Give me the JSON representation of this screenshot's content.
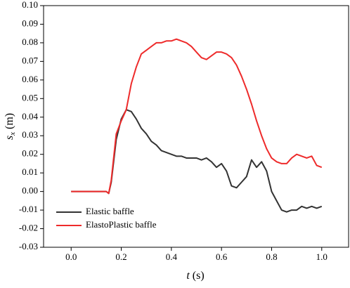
{
  "chart_data": {
    "type": "line",
    "x": [
      0,
      0.02,
      0.04,
      0.06,
      0.08,
      0.1,
      0.12,
      0.14,
      0.15,
      0.16,
      0.18,
      0.2,
      0.22,
      0.24,
      0.26,
      0.28,
      0.3,
      0.32,
      0.34,
      0.36,
      0.38,
      0.4,
      0.42,
      0.44,
      0.46,
      0.48,
      0.5,
      0.52,
      0.54,
      0.56,
      0.58,
      0.6,
      0.62,
      0.64,
      0.66,
      0.68,
      0.7,
      0.72,
      0.74,
      0.76,
      0.78,
      0.8,
      0.82,
      0.84,
      0.86,
      0.88,
      0.9,
      0.92,
      0.94,
      0.96,
      0.98,
      1.0
    ],
    "series": [
      {
        "name": "Elastic baffle",
        "color": "#333333",
        "values": [
          0,
          0,
          0,
          0,
          0,
          0,
          0,
          0,
          -0.001,
          0.005,
          0.028,
          0.039,
          0.044,
          0.043,
          0.039,
          0.034,
          0.031,
          0.027,
          0.025,
          0.022,
          0.021,
          0.02,
          0.019,
          0.019,
          0.018,
          0.018,
          0.018,
          0.017,
          0.018,
          0.016,
          0.013,
          0.015,
          0.011,
          0.003,
          0.002,
          0.005,
          0.008,
          0.017,
          0.013,
          0.016,
          0.011,
          0,
          -0.005,
          -0.01,
          -0.011,
          -0.01,
          -0.01,
          -0.008,
          -0.009,
          -0.008,
          -0.009,
          -0.008
        ]
      },
      {
        "name": "ElastoPlastic baffle",
        "color": "#ee2b2b",
        "values": [
          0,
          0,
          0,
          0,
          0,
          0,
          0,
          0,
          -0.001,
          0.006,
          0.031,
          0.038,
          0.044,
          0.058,
          0.067,
          0.074,
          0.076,
          0.078,
          0.08,
          0.08,
          0.081,
          0.081,
          0.082,
          0.081,
          0.08,
          0.078,
          0.075,
          0.072,
          0.071,
          0.073,
          0.075,
          0.075,
          0.074,
          0.072,
          0.068,
          0.062,
          0.055,
          0.047,
          0.038,
          0.03,
          0.023,
          0.018,
          0.016,
          0.015,
          0.015,
          0.018,
          0.02,
          0.019,
          0.018,
          0.019,
          0.014,
          0.013
        ]
      }
    ],
    "xlabel": {
      "symbol": "t",
      "unit": "(s)"
    },
    "ylabel": {
      "symbol": "s",
      "subscript": "x",
      "unit": "(m)"
    },
    "xlim": [
      -0.11,
      1.11
    ],
    "ylim": [
      -0.03,
      0.1
    ],
    "xticks": [
      {
        "value": 0,
        "label": "0.0"
      },
      0.2,
      0.4,
      0.6,
      0.8,
      {
        "value": 1,
        "label": "1.0"
      }
    ],
    "yticks": [
      -0.03,
      -0.02,
      -0.01,
      {
        "value": 0,
        "label": "0.00"
      },
      0.01,
      0.02,
      0.03,
      0.04,
      0.05,
      0.06,
      0.07,
      0.08,
      0.09,
      {
        "value": 0.1,
        "label": "0.10"
      }
    ],
    "legend": "lower left"
  }
}
